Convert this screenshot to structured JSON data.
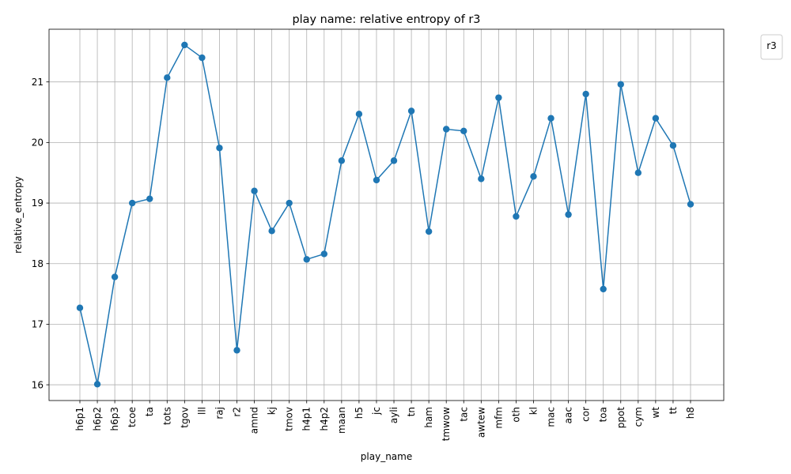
{
  "chart_data": {
    "type": "line",
    "title": "play name: relative entropy of r3",
    "xlabel": "play_name",
    "ylabel": "relative_entropy",
    "legend": {
      "title": "r3",
      "placement": "top-right, outside plot"
    },
    "grid": true,
    "ylim": [
      15.74,
      21.87
    ],
    "yticks": [
      16,
      17,
      18,
      19,
      20,
      21
    ],
    "colors": {
      "line": "#1f77b4",
      "marker": "#1f77b4",
      "grid": "#b0b0b0"
    },
    "categories": [
      "h6p1",
      "h6p2",
      "h6p3",
      "tcoe",
      "ta",
      "tots",
      "tgov",
      "lll",
      "raj",
      "r2",
      "amnd",
      "kj",
      "tmov",
      "h4p1",
      "h4p2",
      "maan",
      "h5",
      "jc",
      "ayli",
      "tn",
      "ham",
      "tmwow",
      "tac",
      "awtew",
      "mfm",
      "oth",
      "kl",
      "mac",
      "aac",
      "cor",
      "toa",
      "ppot",
      "cym",
      "wt",
      "tt",
      "h8"
    ],
    "values": [
      17.27,
      16.01,
      17.78,
      19.0,
      19.07,
      21.07,
      21.61,
      21.4,
      19.91,
      16.57,
      19.2,
      18.54,
      19.0,
      18.07,
      18.16,
      19.7,
      20.47,
      19.38,
      19.7,
      20.52,
      18.53,
      20.22,
      20.19,
      19.4,
      20.74,
      18.78,
      19.44,
      20.4,
      18.81,
      20.8,
      17.58,
      20.96,
      19.5,
      20.4,
      19.95,
      18.98
    ]
  }
}
